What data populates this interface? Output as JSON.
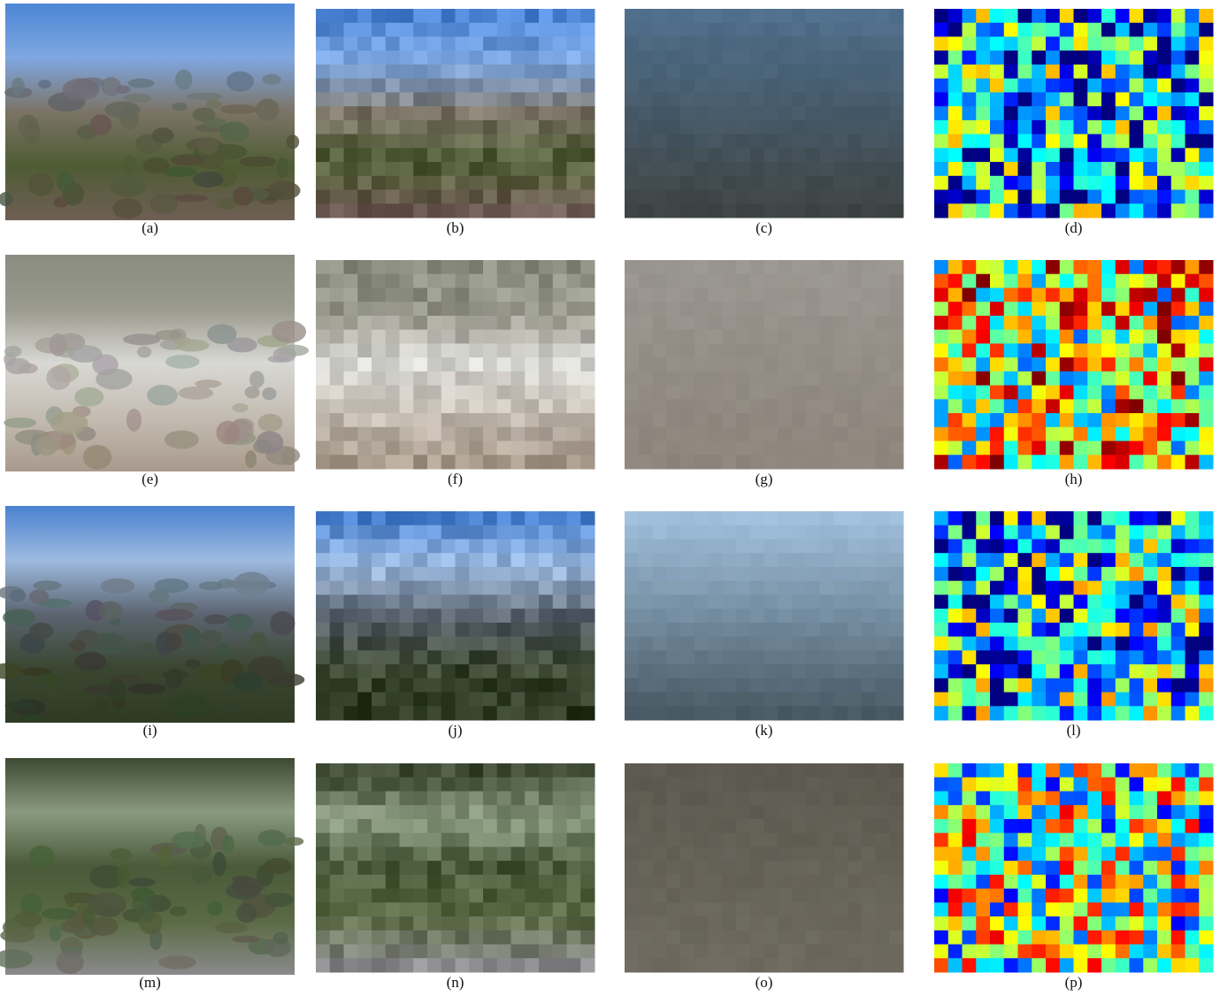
{
  "rows": [
    [
      "(a)",
      "(b)",
      "(c)",
      "(d)"
    ],
    [
      "(e)",
      "(f)",
      "(g)",
      "(h)"
    ],
    [
      "(i)",
      "(j)",
      "(k)",
      "(l)"
    ],
    [
      "(m)",
      "(n)",
      "(o)",
      "(p)"
    ]
  ]
}
